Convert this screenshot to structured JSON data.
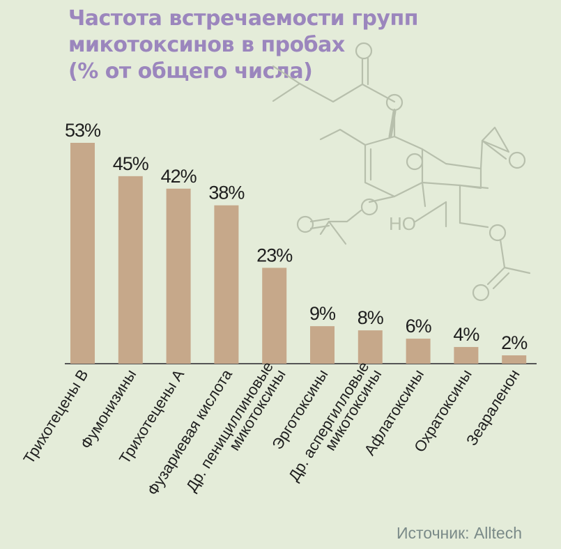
{
  "colors": {
    "background": "#e4ecd9",
    "title": "#9b86bd",
    "bar": "#c6a88a",
    "molecule": "#b7bfac",
    "source": "#7a8a88",
    "text": "#1e1e1e",
    "axis": "#555555"
  },
  "title_lines": [
    "Частота встречаемости групп",
    "микотоксинов в пробах",
    "(% от общего числа)"
  ],
  "source": "Источник: Alltech",
  "chart_data": {
    "type": "bar",
    "title": "Частота встречаемости групп микотоксинов в пробах (% от общего числа)",
    "categories": [
      [
        "Трихотецены В"
      ],
      [
        "Фумонизины"
      ],
      [
        "Трихотецены А"
      ],
      [
        "Фузариевая кислота"
      ],
      [
        "Др. пенициллиновые",
        "микотоксины"
      ],
      [
        "Эрготоксины"
      ],
      [
        "Др. аспергилловые",
        "микотоксины"
      ],
      [
        "Афлатоксины"
      ],
      [
        "Охратоксины"
      ],
      [
        "Зеараленон"
      ]
    ],
    "values": [
      53,
      45,
      42,
      38,
      23,
      9,
      8,
      6,
      4,
      2
    ],
    "value_labels": [
      "53%",
      "45%",
      "42%",
      "38%",
      "23%",
      "9%",
      "8%",
      "6%",
      "4%",
      "2%"
    ],
    "unit": "%",
    "ylim": [
      0,
      53
    ],
    "grid": false,
    "legend": "none"
  },
  "molecule_labels": {
    "oxygen": "O",
    "hydroxyl": "HO"
  }
}
